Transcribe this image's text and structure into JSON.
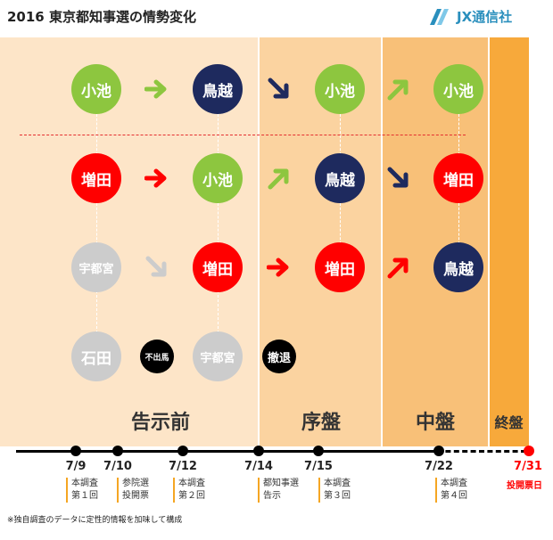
{
  "title": "2016 東京都知事選の情勢変化",
  "logo": {
    "text": "JX通信社",
    "icon": "jx-logo-icon"
  },
  "colors": {
    "koike": "#8dc63f",
    "toriyama": "#1e2a5e",
    "masuda": "#ff0000",
    "grey": "#cccccc",
    "black": "#000000",
    "phase_pre": "#fde5c8",
    "phase_early": "#fbd3a0",
    "phase_mid": "#f8c078",
    "phase_final": "#f7a93b"
  },
  "rows": [
    {
      "cells": [
        "小池",
        "鳥越",
        "小池",
        "小池"
      ],
      "arrows": [
        "right",
        "down-right",
        "up-right"
      ]
    },
    {
      "cells": [
        "増田",
        "小池",
        "鳥越",
        "増田"
      ],
      "arrows": [
        "right",
        "up-right",
        "down-right"
      ]
    },
    {
      "cells": [
        "宇都宮",
        "増田",
        "増田",
        "鳥越"
      ],
      "arrows": [
        "down-right",
        "right",
        "up-right"
      ]
    },
    {
      "cells": [
        "石田",
        "宇都宮"
      ],
      "labels": [
        "不出馬",
        "撤退"
      ]
    }
  ],
  "phases": [
    "告示前",
    "序盤",
    "中盤",
    "終盤"
  ],
  "timeline": {
    "dates": [
      "7/9",
      "7/10",
      "7/12",
      "7/14",
      "7/15",
      "7/22",
      "7/31"
    ],
    "events": [
      {
        "date": "7/9",
        "lines": [
          "本調査",
          "第１回"
        ]
      },
      {
        "date": "7/10",
        "lines": [
          "参院選",
          "投開票"
        ]
      },
      {
        "date": "7/12",
        "lines": [
          "本調査",
          "第２回"
        ]
      },
      {
        "date": "7/14",
        "lines": [
          "都知事選",
          "告示"
        ]
      },
      {
        "date": "7/15",
        "lines": [
          "本調査",
          "第３回"
        ]
      },
      {
        "date": "7/22",
        "lines": [
          "本調査",
          "第４回"
        ]
      },
      {
        "date": "7/31",
        "lines": [
          "投開票日"
        ]
      }
    ]
  },
  "footnote": "※独自調査のデータに定性的情報を加味して構成"
}
